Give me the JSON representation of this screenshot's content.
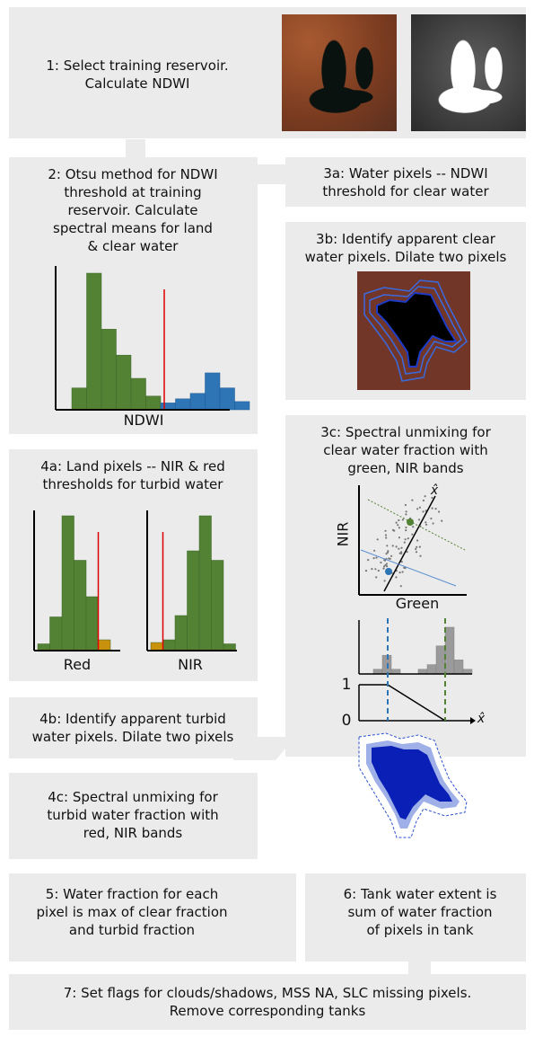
{
  "colors": {
    "box": "#ebebeb",
    "bar_green": "#548235",
    "bar_blue": "#2e75b6",
    "threshold_red": "#e00000",
    "bar_gold": "#c9920e",
    "dashed_blue": "#2e75b6",
    "dashed_green": "#548235",
    "water_blue": "#0a1fb5"
  },
  "steps": {
    "s1": "1: Select training reservoir.\nCalculate NDWI",
    "s2": "2: Otsu method for NDWI\nthreshold at training\nreservoir. Calculate\nspectral means for land\n& clear water",
    "s3a": "3a: Water pixels -- NDWI\nthreshold for clear water",
    "s3b": "3b: Identify apparent clear\nwater pixels. Dilate two pixels",
    "s3c": "3c: Spectral unmixing for\nclear water fraction with\ngreen, NIR bands",
    "s4a": "4a: Land pixels -- NIR & red\nthresholds for turbid water",
    "s4b": "4b: Identify apparent turbid\nwater pixels. Dilate two pixels",
    "s4c": "4c: Spectral unmixing for\nturbid water fraction with\nred, NIR bands",
    "s5": "5: Water fraction for each\npixel is max of clear fraction\nand turbid fraction",
    "s6": "6: Tank water extent is\nsum of water fraction\nof pixels in tank",
    "s7": "7: Set flags for clouds/shadows, MSS NA, SLC missing pixels.\nRemove corresponding tanks"
  },
  "chart_labels": {
    "ndwi_xlabel": "NDWI",
    "red_xlabel": "Red",
    "nir_xlabel": "NIR",
    "scatter_ylabel": "NIR",
    "scatter_xlabel": "Green",
    "x_hat": "x̂",
    "y_tick_1": "1",
    "y_tick_0": "0"
  },
  "chart_data": [
    {
      "type": "bar",
      "xlabel": "NDWI",
      "series": [
        {
          "values": [
            0.16,
            1.0,
            0.59,
            0.4,
            0.23,
            0.1
          ]
        },
        {
          "values": [
            0.05,
            0.08,
            0.12,
            0.27,
            0.16,
            0.06
          ]
        }
      ],
      "threshold_after_bin": 6
    },
    {
      "type": "bar",
      "xlabel": "Red",
      "series": [
        {
          "values": [
            0.05,
            0.25,
            1.0,
            0.67,
            0.4,
            0.08
          ]
        }
      ],
      "threshold_after_bin": 5
    },
    {
      "type": "bar",
      "xlabel": "NIR",
      "series": [
        {
          "values": [
            0.06,
            0.08,
            0.26,
            0.74,
            1.0,
            0.67,
            0.05
          ]
        }
      ],
      "threshold_after_bin": 1
    },
    {
      "type": "scatter",
      "xlabel": "Green",
      "ylabel": "NIR"
    },
    {
      "type": "bar",
      "series": [
        {
          "values": [
            0.1,
            0.4,
            0.1,
            0.0,
            0.0,
            0.1,
            0.2,
            0.6,
            1.0,
            0.3,
            0.1
          ]
        }
      ]
    }
  ]
}
